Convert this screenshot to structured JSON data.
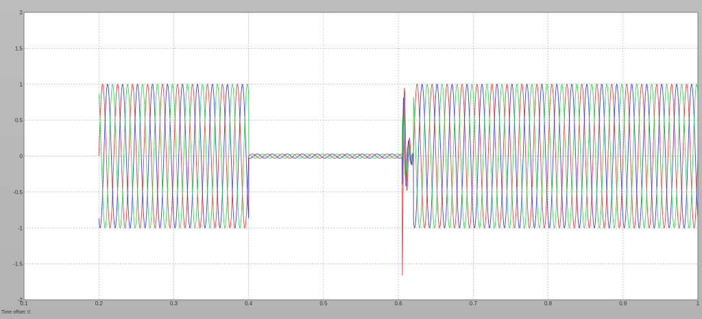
{
  "status": {
    "time_offset_label": "Time offset:",
    "time_offset_value": "0"
  },
  "colors": {
    "figure_bg": "#b9b9b9",
    "axes_bg": "#ffffff",
    "grid": "#9a9a9a",
    "phase_a": "#d83030",
    "phase_b": "#2a2acc",
    "phase_c": "#22cc44"
  },
  "chart_data": {
    "type": "line",
    "title": "",
    "xlabel": "",
    "ylabel": "",
    "xlim": [
      0.1,
      1.0
    ],
    "ylim": [
      -2,
      2
    ],
    "grid": true,
    "x_ticks": [
      "0.1",
      "0.2",
      "0.3",
      "0.4",
      "0.5",
      "0.6",
      "0.7",
      "0.8",
      "0.9",
      "1"
    ],
    "y_ticks": [
      "2",
      "1.5",
      "1",
      "0.5",
      "0",
      "-0.5",
      "-1",
      "-1.5",
      "-2"
    ],
    "frequency_hz": 50,
    "segments": [
      {
        "t_start": 0.2,
        "t_end": 0.4,
        "amplitude": 1.0,
        "description": "three-phase sine"
      },
      {
        "t_start": 0.4,
        "t_end": 0.605,
        "amplitude": 0.03,
        "description": "near-zero oscillation"
      },
      {
        "t_start": 0.605,
        "t_end": 0.62,
        "amplitude": 1.8,
        "description": "transient spike"
      },
      {
        "t_start": 0.62,
        "t_end": 1.0,
        "amplitude": 1.0,
        "description": "three-phase sine"
      }
    ],
    "series": [
      {
        "name": "",
        "color": "#d83030",
        "phase_deg": 0
      },
      {
        "name": "",
        "color": "#2a2acc",
        "phase_deg": -120
      },
      {
        "name": "",
        "color": "#22cc44",
        "phase_deg": 120
      }
    ]
  }
}
